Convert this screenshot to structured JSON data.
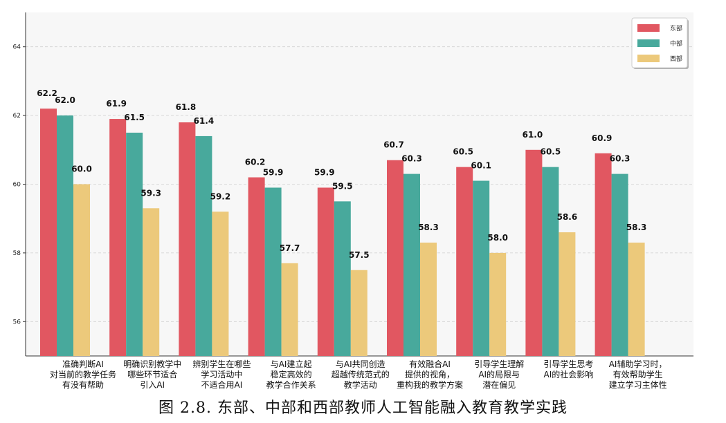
{
  "caption": "图 2.8. 东部、中部和西部教师人工智能融入教育教学实践",
  "chart_data": {
    "type": "bar",
    "categories": [
      [
        "准确判断AI",
        "对当前的教学任务",
        "有没有帮助"
      ],
      [
        "明确识别教学中",
        "哪些环节适合",
        "引入AI"
      ],
      [
        "辨别学生在哪些",
        "学习活动中",
        "不适合用AI"
      ],
      [
        "与AI建立起",
        "稳定高效的",
        "教学合作关系"
      ],
      [
        "与AI共同创造",
        "超越传统范式的",
        "教学活动"
      ],
      [
        "有效融合AI",
        "提供的视角，",
        "重构我的教学方案"
      ],
      [
        "引导学生理解",
        "AI的局限与",
        "潜在偏见"
      ],
      [
        "引导学生思考",
        "AI的社会影响"
      ],
      [
        "AI辅助学习时，",
        "有效帮助学生",
        "建立学习主体性"
      ]
    ],
    "series": [
      {
        "name": "东部",
        "color": "#e15761",
        "values": [
          62.2,
          61.9,
          61.8,
          60.2,
          59.9,
          60.7,
          60.5,
          61.0,
          60.9
        ]
      },
      {
        "name": "中部",
        "color": "#48a99c",
        "values": [
          62.0,
          61.5,
          61.4,
          59.9,
          59.5,
          60.3,
          60.1,
          60.5,
          60.3
        ]
      },
      {
        "name": "西部",
        "color": "#ecc97b",
        "values": [
          60.0,
          59.3,
          59.2,
          57.7,
          57.5,
          58.3,
          58.0,
          58.6,
          58.3
        ]
      }
    ],
    "value_labels": [
      [
        "62.2",
        "61.9",
        "61.8",
        "60.2",
        "59.9",
        "60.7",
        "60.5",
        "61.0",
        "60.9"
      ],
      [
        "62.0",
        "61.5",
        "61.4",
        "59.9",
        "59.5",
        "60.3",
        "60.1",
        "60.5",
        "60.3"
      ],
      [
        "60.0",
        "59.3",
        "59.2",
        "57.7",
        "57.5",
        "58.3",
        "58.0",
        "58.6",
        "58.3"
      ]
    ],
    "yticks": [
      "56",
      "58",
      "60",
      "62",
      "64"
    ],
    "ylim": [
      55,
      65
    ],
    "grid": true,
    "legend_position": "top-right"
  }
}
